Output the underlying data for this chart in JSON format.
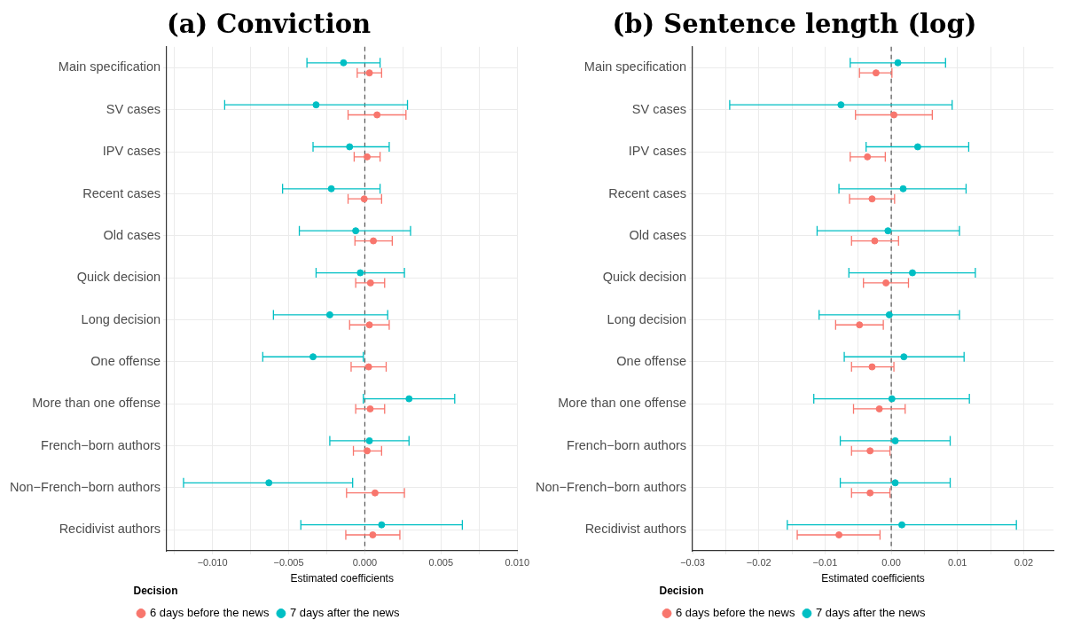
{
  "chart_data": [
    {
      "type": "scatter",
      "orientation": "horizontal",
      "title": "(a) Conviction",
      "xlabel": "Estimated coefficients",
      "legend_title": "Decision",
      "legend": "bottom",
      "grid": true,
      "marker": "circle",
      "categories": [
        "Main specification",
        "SV cases",
        "IPV cases",
        "Recent cases",
        "Old cases",
        "Quick decision",
        "Long decision",
        "One offense",
        "More than one offense",
        "French−born authors",
        "Non−French−born authors",
        "Recidivist authors"
      ],
      "xlim": [
        -0.013,
        0.01
      ],
      "xticks": [
        {
          "value": -0.0125,
          "label": null
        },
        {
          "value": -0.01,
          "label": "−0.010"
        },
        {
          "value": -0.0075,
          "label": null
        },
        {
          "value": -0.005,
          "label": "−0.005"
        },
        {
          "value": -0.0025,
          "label": null
        },
        {
          "value": 0,
          "label": "0.000"
        },
        {
          "value": 0.0025,
          "label": null
        },
        {
          "value": 0.005,
          "label": "0.005"
        },
        {
          "value": 0.0075,
          "label": null
        },
        {
          "value": 0.01,
          "label": "0.010"
        }
      ],
      "ref_lines": [
        {
          "axis": "x",
          "value": 0,
          "line_style": "dashed",
          "color": "#555555"
        }
      ],
      "series": [
        {
          "name": "6 days before the news",
          "color": "#f8766d",
          "values": [
            0.0003,
            0.0008,
            0.00015,
            -4e-05,
            0.00056,
            0.00037,
            0.0003,
            0.00025,
            0.00035,
            0.00015,
            0.00067,
            0.00052
          ],
          "errors": [
            [
              -0.0005,
              0.0011
            ],
            [
              -0.0011,
              0.0027
            ],
            [
              -0.0007,
              0.001
            ],
            [
              -0.0011,
              0.0011
            ],
            [
              -0.00065,
              0.0018
            ],
            [
              -0.0006,
              0.0013
            ],
            [
              -0.001,
              0.0016
            ],
            [
              -0.0009,
              0.0014
            ],
            [
              -0.0006,
              0.0013
            ],
            [
              -0.00075,
              0.0011
            ],
            [
              -0.0012,
              0.0026
            ],
            [
              -0.00125,
              0.0023
            ]
          ]
        },
        {
          "name": "7 days after the news",
          "color": "#00bfc4",
          "values": [
            -0.0014,
            -0.0032,
            -0.001,
            -0.0022,
            -0.0006,
            -0.0003,
            -0.0023,
            -0.0034,
            0.0029,
            0.0003,
            -0.0063,
            0.0011
          ],
          "errors": [
            [
              -0.0038,
              0.001
            ],
            [
              -0.0092,
              0.0028
            ],
            [
              -0.0034,
              0.0016
            ],
            [
              -0.0054,
              0.001
            ],
            [
              -0.0043,
              0.003
            ],
            [
              -0.0032,
              0.0026
            ],
            [
              -0.006,
              0.0015
            ],
            [
              -0.0067,
              -0.0001
            ],
            [
              -0.0001,
              0.0059
            ],
            [
              -0.0023,
              0.0029
            ],
            [
              -0.0119,
              -0.0008
            ],
            [
              -0.0042,
              0.0064
            ]
          ]
        }
      ]
    },
    {
      "type": "scatter",
      "orientation": "horizontal",
      "title": "(b) Sentence length (log)",
      "xlabel": "Estimated coefficients",
      "legend_title": "Decision",
      "legend": "bottom",
      "grid": true,
      "marker": "circle",
      "categories": [
        "Main specification",
        "SV cases",
        "IPV cases",
        "Recent cases",
        "Old cases",
        "Quick decision",
        "Long decision",
        "One offense",
        "More than one offense",
        "French−born authors",
        "Non−French−born authors",
        "Recidivist authors"
      ],
      "xlim": [
        -0.03,
        0.0245
      ],
      "xticks": [
        {
          "value": -0.03,
          "label": "−0.03"
        },
        {
          "value": -0.025,
          "label": null
        },
        {
          "value": -0.02,
          "label": "−0.02"
        },
        {
          "value": -0.015,
          "label": null
        },
        {
          "value": -0.01,
          "label": "−0.01"
        },
        {
          "value": -0.005,
          "label": null
        },
        {
          "value": 0,
          "label": "0.00"
        },
        {
          "value": 0.005,
          "label": null
        },
        {
          "value": 0.01,
          "label": "0.01"
        },
        {
          "value": 0.015,
          "label": null
        },
        {
          "value": 0.02,
          "label": "0.02"
        }
      ],
      "ref_lines": [
        {
          "axis": "x",
          "value": 0,
          "line_style": "dashed",
          "color": "#555555"
        }
      ],
      "series": [
        {
          "name": "6 days before the news",
          "color": "#f8766d",
          "values": [
            -0.0023,
            0.0004,
            -0.0036,
            -0.0029,
            -0.0025,
            -0.0008,
            -0.0048,
            -0.0029,
            -0.0018,
            -0.0032,
            -0.0032,
            -0.0079
          ],
          "errors": [
            [
              -0.0048,
              0.0001
            ],
            [
              -0.0054,
              0.0062
            ],
            [
              -0.0062,
              -0.0009
            ],
            [
              -0.0063,
              0.0005
            ],
            [
              -0.006,
              0.0011
            ],
            [
              -0.0042,
              0.0026
            ],
            [
              -0.0084,
              -0.0012
            ],
            [
              -0.006,
              0.0004
            ],
            [
              -0.0057,
              0.0021
            ],
            [
              -0.006,
              -0.0002
            ],
            [
              -0.006,
              -0.0002
            ],
            [
              -0.0142,
              -0.0017
            ]
          ]
        },
        {
          "name": "7 days after the news",
          "color": "#00bfc4",
          "values": [
            0.001,
            -0.0076,
            0.004,
            0.0018,
            -0.0005,
            0.0032,
            -0.0003,
            0.0019,
            0.0001,
            0.0006,
            0.0006,
            0.0016
          ],
          "errors": [
            [
              -0.0062,
              0.0082
            ],
            [
              -0.0244,
              0.0092
            ],
            [
              -0.0038,
              0.0117
            ],
            [
              -0.0079,
              0.0113
            ],
            [
              -0.0112,
              0.0103
            ],
            [
              -0.0064,
              0.0127
            ],
            [
              -0.0109,
              0.0103
            ],
            [
              -0.0071,
              0.011
            ],
            [
              -0.0117,
              0.0118
            ],
            [
              -0.0077,
              0.0089
            ],
            [
              -0.0077,
              0.0089
            ],
            [
              -0.0157,
              0.0189
            ]
          ]
        }
      ]
    }
  ]
}
